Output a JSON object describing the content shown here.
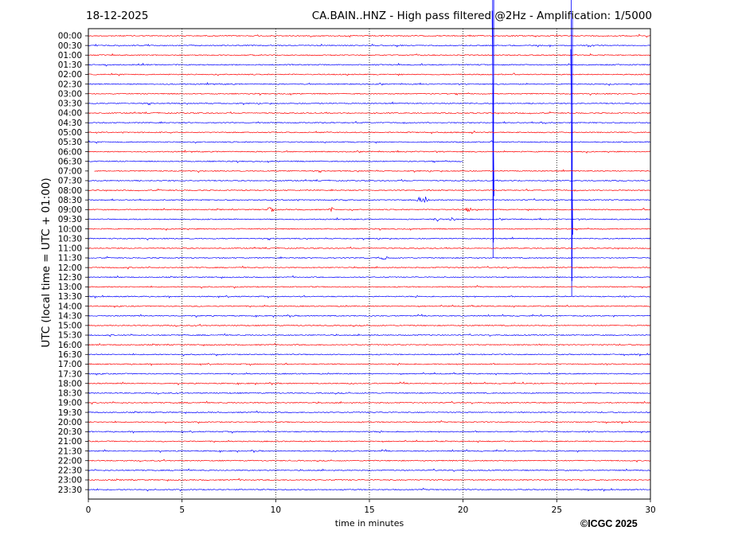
{
  "header": {
    "date": "18-12-2025",
    "title": "CA.BAIN..HNZ - High pass filtered @2Hz - Amplification: 1/5000"
  },
  "footer": {
    "copyright": "©ICGC 2025"
  },
  "colors": {
    "trace_red": "#ff0000",
    "trace_blue": "#0000ff",
    "grid": "#000000",
    "frame": "#000000"
  },
  "chart_data": {
    "type": "line",
    "title": "CA.BAIN..HNZ - High pass filtered @2Hz - Amplification: 1/5000",
    "xlabel": "time in minutes",
    "ylabel": "UTC (local time = UTC + 01:00)",
    "xlim": [
      0,
      30
    ],
    "x_ticks": [
      0,
      5,
      10,
      15,
      20,
      25,
      30
    ],
    "x_tick_labels": [
      "0",
      "5",
      "10",
      "15",
      "20",
      "25",
      "30"
    ],
    "grid": {
      "vertical_dotted_at_minutes": [
        5,
        10,
        15,
        20,
        25
      ]
    },
    "rows": [
      "00:00",
      "00:30",
      "01:00",
      "01:30",
      "02:00",
      "02:30",
      "03:00",
      "03:30",
      "04:00",
      "04:30",
      "05:00",
      "05:30",
      "06:00",
      "06:30",
      "07:00",
      "07:30",
      "08:00",
      "08:30",
      "09:00",
      "09:30",
      "10:00",
      "10:30",
      "11:00",
      "11:30",
      "12:00",
      "12:30",
      "13:00",
      "13:30",
      "14:00",
      "14:30",
      "15:00",
      "15:30",
      "16:00",
      "16:30",
      "17:00",
      "17:30",
      "18:00",
      "18:30",
      "19:00",
      "19:30",
      "20:00",
      "20:30",
      "21:00",
      "21:30",
      "22:00",
      "22:30",
      "23:00",
      "23:30"
    ],
    "row_colors_cycle": [
      "red",
      "blue"
    ],
    "gaps": [
      {
        "row": "06:30",
        "from_minute": 20.0,
        "to_minute": 30
      },
      {
        "row": "07:00",
        "from_minute": 0,
        "to_minute": 0.3
      }
    ],
    "events": [
      {
        "row": "09:00",
        "minute": 9.7,
        "amplitude": 0.9
      },
      {
        "row": "09:00",
        "minute": 13.0,
        "amplitude": 0.5
      },
      {
        "row": "08:30",
        "minute": 17.7,
        "amplitude": 1.2
      },
      {
        "row": "08:30",
        "minute": 18.0,
        "amplitude": 0.8
      },
      {
        "row": "09:00",
        "minute": 20.3,
        "amplitude": 0.7
      },
      {
        "row": "09:30",
        "minute": 19.4,
        "amplitude": 0.6
      },
      {
        "row": "09:30",
        "minute": 18.6,
        "amplitude": 0.5
      },
      {
        "row": "11:30",
        "minute": 15.8,
        "amplitude": 0.5
      },
      {
        "row": "04:30",
        "minute": 24.3,
        "amplitude": 0.4
      },
      {
        "row": "03:30",
        "minute": 21.6,
        "amplitude": 16.0,
        "spike": true
      },
      {
        "row": "05:30",
        "minute": 25.8,
        "amplitude": 16.0,
        "spike": true
      }
    ]
  }
}
